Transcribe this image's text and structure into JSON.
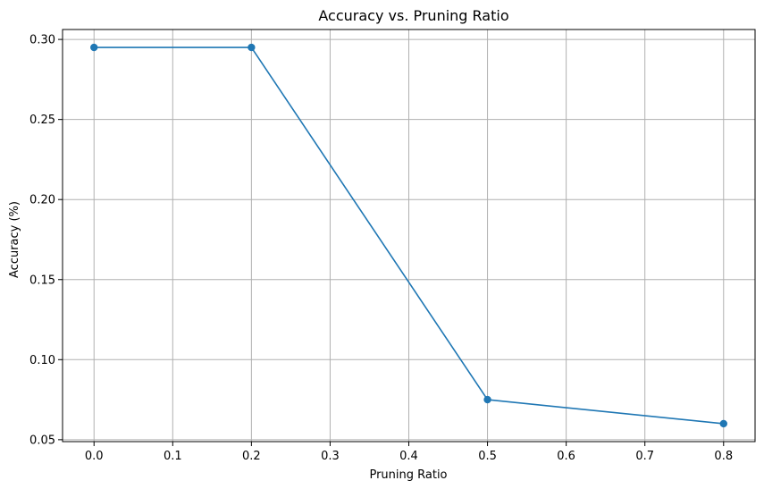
{
  "chart_data": {
    "type": "line",
    "title": "Accuracy vs. Pruning Ratio",
    "xlabel": "Pruning Ratio",
    "ylabel": "Accuracy (%)",
    "xlim": [
      -0.04,
      0.84
    ],
    "ylim": [
      0.0488,
      0.3062
    ],
    "xticks": [
      0.0,
      0.1,
      0.2,
      0.3,
      0.4,
      0.5,
      0.6,
      0.7,
      0.8
    ],
    "xtick_labels": [
      "0.0",
      "0.1",
      "0.2",
      "0.3",
      "0.4",
      "0.5",
      "0.6",
      "0.7",
      "0.8"
    ],
    "yticks": [
      0.05,
      0.1,
      0.15,
      0.2,
      0.25,
      0.3
    ],
    "ytick_labels": [
      "0.05",
      "0.10",
      "0.15",
      "0.20",
      "0.25",
      "0.30"
    ],
    "grid": true,
    "series": [
      {
        "color": "#1f77b4",
        "marker": "circle",
        "x": [
          0.0,
          0.2,
          0.5,
          0.8
        ],
        "y": [
          0.295,
          0.295,
          0.075,
          0.06
        ]
      }
    ]
  }
}
